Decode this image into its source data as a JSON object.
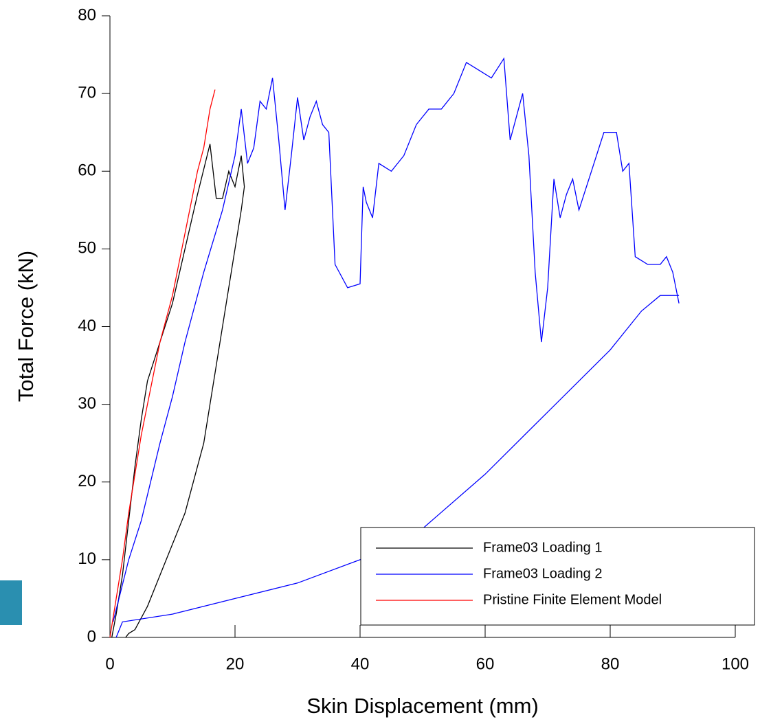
{
  "chart_data": {
    "type": "line",
    "x_label": "Skin Displacement (mm)",
    "y_label": "Total Force (kN)",
    "xlim": [
      0,
      100
    ],
    "xticks": [
      0,
      20,
      40,
      60,
      80,
      100
    ],
    "ylim": [
      0,
      80
    ],
    "yticks": [
      0,
      10,
      20,
      30,
      40,
      50,
      60,
      70,
      80
    ],
    "legend": "lower right",
    "series": [
      {
        "name": "Frame03 Loading 1",
        "color": "#000000",
        "x": [
          0.3,
          1,
          2,
          3,
          4,
          5,
          6,
          8,
          10,
          12,
          14,
          16,
          17,
          18,
          19,
          20,
          21,
          21.5,
          21,
          20,
          19,
          18,
          17,
          16,
          15,
          14,
          12,
          10,
          8,
          6,
          4,
          3,
          2.5
        ],
        "values": [
          0,
          3,
          8,
          15,
          22,
          28,
          33,
          38,
          43,
          50,
          57,
          63.5,
          56.5,
          56.5,
          60,
          58,
          62,
          58,
          55,
          50,
          45,
          40,
          35,
          30,
          25,
          22,
          16,
          12,
          8,
          4,
          1,
          0.5,
          0
        ]
      },
      {
        "name": "Frame03 Loading 2",
        "color": "#0000ff",
        "x": [
          0.5,
          3,
          5,
          8,
          10,
          12,
          15,
          18,
          20,
          21,
          22,
          23,
          24,
          25,
          26,
          27,
          28,
          29,
          30,
          31,
          32,
          33,
          34,
          35,
          36,
          38,
          40,
          40.5,
          41,
          42,
          43,
          45,
          47,
          49,
          51,
          53,
          55,
          57,
          59,
          61,
          63,
          64,
          65,
          66,
          67,
          68,
          69,
          70,
          71,
          72,
          73,
          74,
          75,
          77,
          79,
          81,
          82,
          83,
          84,
          86,
          88,
          89,
          90,
          91,
          null,
          1,
          2,
          10,
          20,
          30,
          40,
          50,
          60,
          70,
          80,
          85,
          88,
          91
        ],
        "values": [
          2,
          10,
          15,
          25,
          31,
          38,
          47,
          55,
          62,
          68,
          61,
          63,
          69,
          68,
          72,
          64,
          55,
          62,
          69.5,
          64,
          67,
          69,
          66,
          65,
          48,
          45,
          45.5,
          58,
          56,
          54,
          61,
          60,
          62,
          66,
          68,
          68,
          70,
          74,
          73,
          72,
          74.5,
          64,
          67,
          70,
          62,
          47,
          38,
          45,
          59,
          54,
          57,
          59,
          55,
          60,
          65,
          65,
          60,
          61,
          49,
          48,
          48,
          49,
          47,
          43,
          null,
          0,
          2,
          3,
          5,
          7,
          10,
          14,
          21,
          29,
          37,
          42,
          44,
          44
        ]
      },
      {
        "name": "Pristine Finite Element Model",
        "color": "#ff0000",
        "x": [
          0,
          1,
          2,
          3,
          4,
          5,
          6,
          7,
          8,
          9,
          10,
          11,
          12,
          13,
          14,
          15,
          16,
          16.8
        ],
        "values": [
          0,
          5,
          10,
          16,
          21,
          26,
          30,
          34,
          38,
          41,
          44,
          48,
          52,
          56,
          60,
          63,
          68,
          70.5
        ]
      }
    ]
  }
}
